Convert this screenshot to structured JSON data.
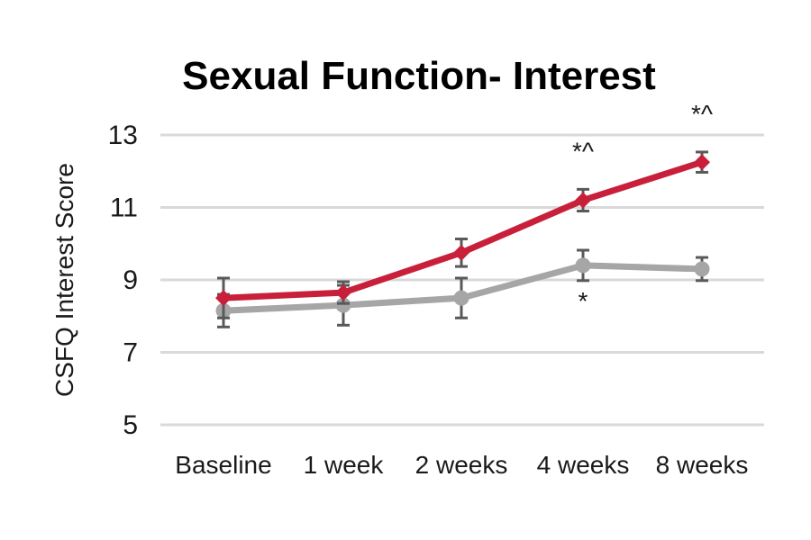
{
  "chart_data": {
    "type": "line",
    "title": "Sexual Function- Interest",
    "xlabel": "",
    "ylabel": "CSFQ Interest Score",
    "categories": [
      "Baseline",
      "1 week",
      "2 weeks",
      "4 weeks",
      "8 weeks"
    ],
    "ylim": [
      5,
      13
    ],
    "yticks": [
      "5",
      "7",
      "9",
      "11",
      "13"
    ],
    "grid": true,
    "legend": "none",
    "series": [
      {
        "color": "#c8203a",
        "marker": "diamond",
        "values": [
          8.5,
          8.65,
          9.75,
          11.2,
          12.25
        ],
        "error": [
          0.55,
          0.3,
          0.38,
          0.3,
          0.28
        ]
      },
      {
        "color": "#a6a6a6",
        "marker": "circle",
        "values": [
          8.15,
          8.3,
          8.5,
          9.4,
          9.3
        ],
        "error": [
          0.45,
          0.55,
          0.55,
          0.42,
          0.32
        ]
      }
    ],
    "annotations": [
      {
        "text": "*^",
        "category": "4 weeks",
        "position": "above"
      },
      {
        "text": "*^",
        "category": "8 weeks",
        "position": "above"
      },
      {
        "text": "*",
        "category": "4 weeks",
        "position": "below"
      }
    ]
  }
}
